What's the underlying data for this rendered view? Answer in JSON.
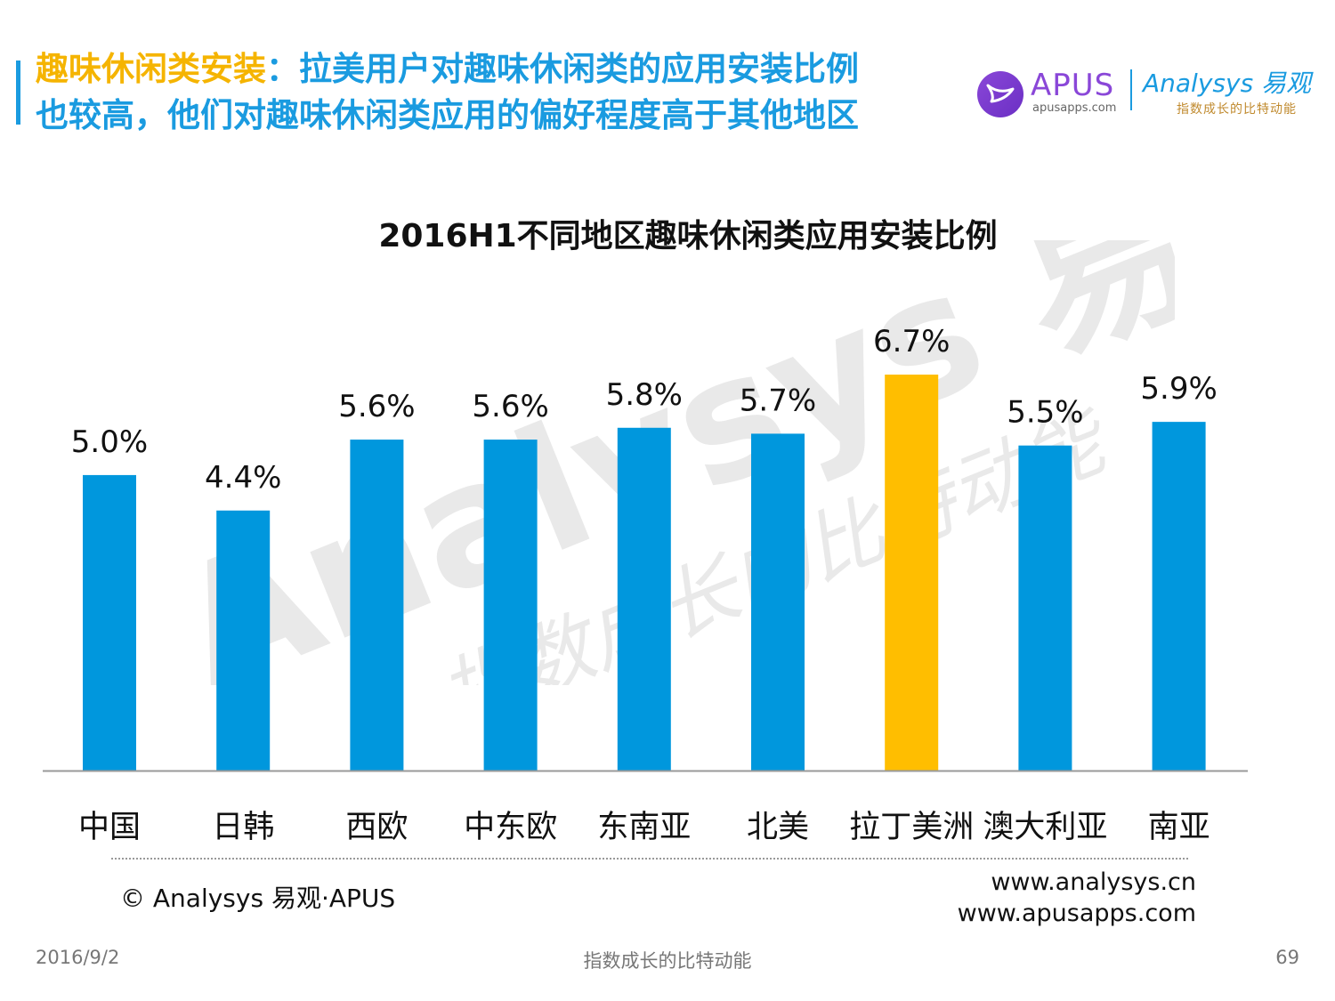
{
  "header": {
    "title_highlight": "趣味休闲类安装",
    "title_line1_rest": "：拉美用户对趣味休闲类的应用安装比例",
    "title_line2": "也较高，他们对趣味休闲类应用的偏好程度高于其他地区"
  },
  "logos": {
    "apus_name": "APUS",
    "apus_url": "apusapps.com",
    "analysys_name": "Analysys 易观",
    "analysys_tagline": "指数成长的比特动能"
  },
  "watermark": {
    "brand": "Analysys 易观",
    "tagline": "指数成长的比特动能"
  },
  "chart_data": {
    "type": "bar",
    "title": "2016H1不同地区趣味休闲类应用安装比例",
    "categories": [
      "中国",
      "日韩",
      "西欧",
      "中东欧",
      "东南亚",
      "北美",
      "拉丁美洲",
      "澳大利亚",
      "南亚"
    ],
    "values": [
      5.0,
      4.4,
      5.6,
      5.6,
      5.8,
      5.7,
      6.7,
      5.5,
      5.9
    ],
    "value_labels": [
      "5.0%",
      "4.4%",
      "5.6%",
      "5.6%",
      "5.8%",
      "5.7%",
      "6.7%",
      "5.5%",
      "5.9%"
    ],
    "unit": "%",
    "ylim": [
      0,
      6.7
    ],
    "highlight_index": 6,
    "bar_color": "#0097dd",
    "highlight_color": "#ffbe00",
    "grid": false,
    "legend": "none"
  },
  "footer": {
    "copyright": "© Analysys 易观·APUS",
    "url1": "www.analysys.cn",
    "url2": "www.apusapps.com",
    "date": "2016/9/2",
    "slogan": "指数成长的比特动能",
    "page": "69"
  }
}
